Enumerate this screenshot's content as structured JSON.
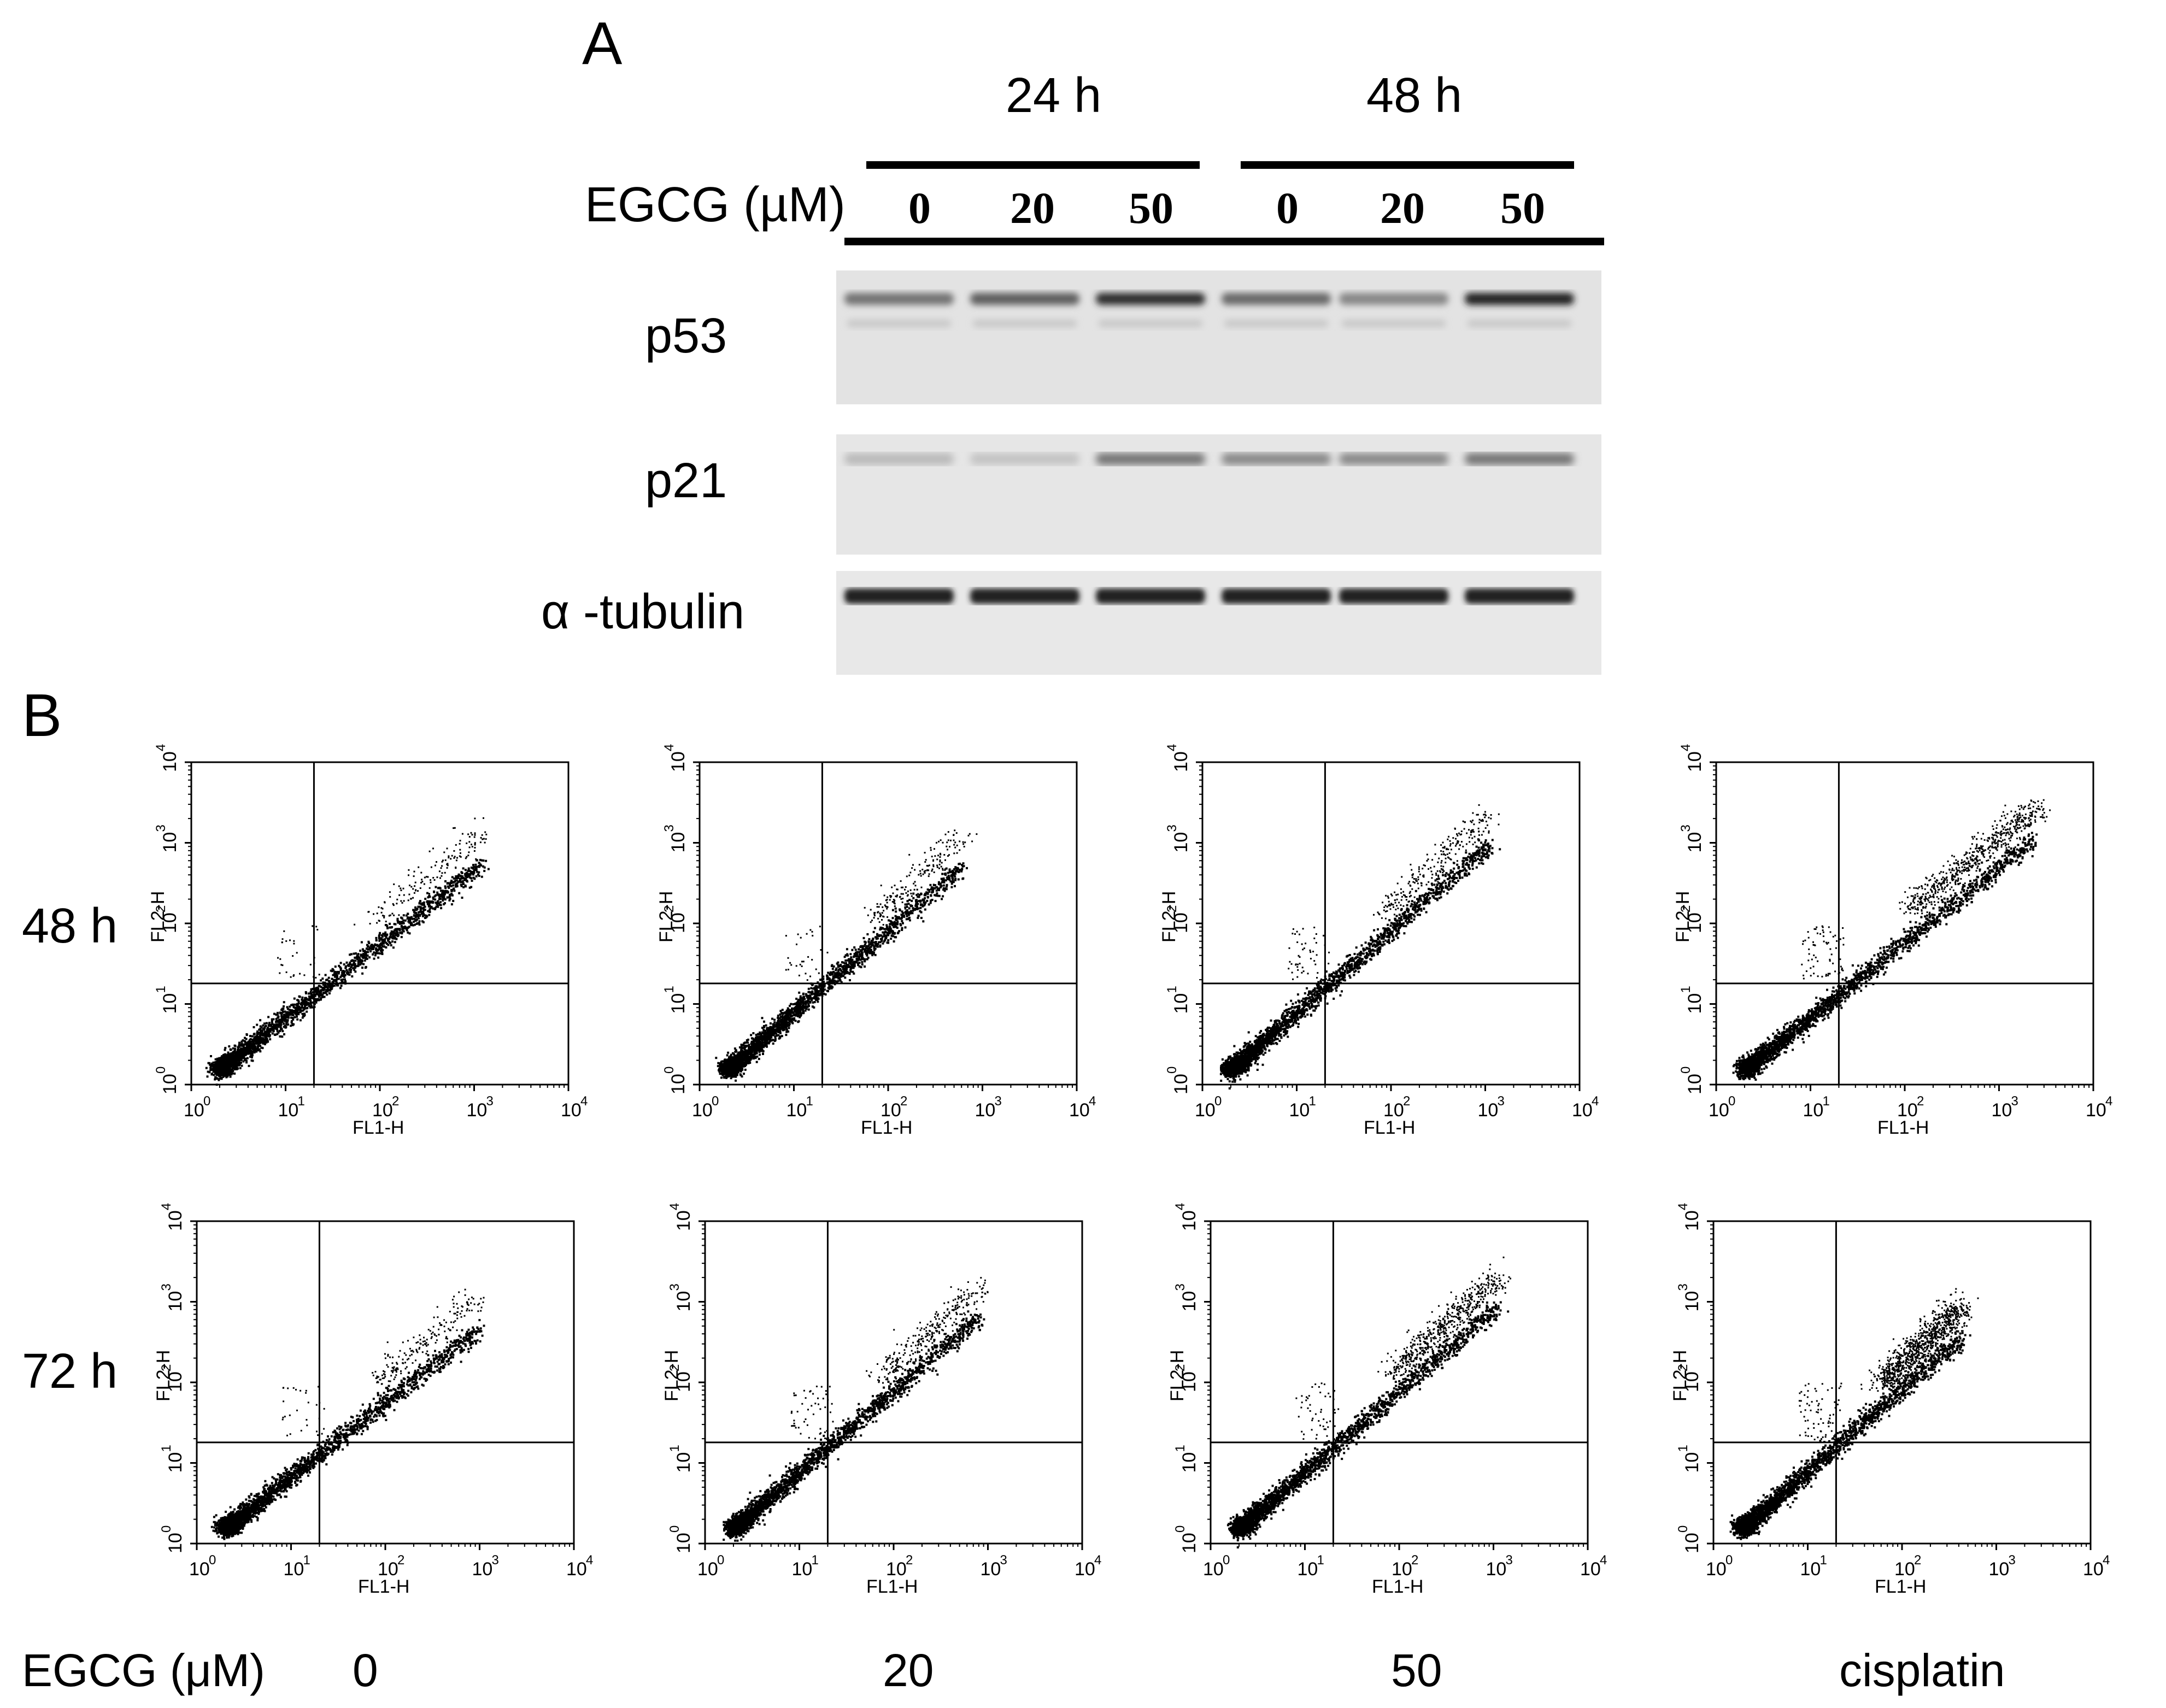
{
  "panel_a": {
    "letter": "A",
    "time_groups": [
      "24 h",
      "48 h"
    ],
    "treatment_label": "EGCG (µM)",
    "doses": [
      "0",
      "20",
      "50",
      "0",
      "20",
      "50"
    ],
    "blots": [
      {
        "label": "p53",
        "band_intensity": [
          0.55,
          0.65,
          0.9,
          0.6,
          0.45,
          0.95
        ]
      },
      {
        "label": "p21",
        "band_intensity": [
          0.2,
          0.15,
          0.55,
          0.45,
          0.45,
          0.55
        ]
      },
      {
        "label": "α -tubulin",
        "band_intensity": [
          0.95,
          0.95,
          0.95,
          0.95,
          0.95,
          0.95
        ]
      }
    ]
  },
  "panel_b": {
    "letter": "B",
    "row_labels": [
      "48 h",
      "72 h"
    ],
    "column_labels": [
      "0",
      "20",
      "50",
      "cisplatin"
    ],
    "treatment_label": "EGCG (μM)",
    "axis": {
      "xlabel": "FL1-H",
      "ylabel": "FL2-H",
      "ticks": [
        "10",
        "10",
        "10",
        "10",
        "10"
      ],
      "exponents": [
        "0",
        "1",
        "2",
        "3",
        "4"
      ]
    }
  },
  "chart_data": [
    {
      "type": "scatter",
      "row": "48 h",
      "column": "0",
      "xlabel": "FL1-H",
      "ylabel": "FL2-H",
      "xscale": "log",
      "yscale": "log",
      "xlim": [
        1,
        10000
      ],
      "ylim": [
        1,
        10000
      ],
      "quadrant_gate": {
        "x": 20,
        "y": 18
      },
      "main_population_end": {
        "x": 1200,
        "y": 650
      },
      "late_apoptotic_fraction": 0.05,
      "early_apoptotic_fraction": 0.01
    },
    {
      "type": "scatter",
      "row": "48 h",
      "column": "20",
      "xlabel": "FL1-H",
      "ylabel": "FL2-H",
      "xscale": "log",
      "yscale": "log",
      "xlim": [
        1,
        10000
      ],
      "ylim": [
        1,
        10000
      ],
      "quadrant_gate": {
        "x": 20,
        "y": 18
      },
      "main_population_end": {
        "x": 600,
        "y": 600
      },
      "late_apoptotic_fraction": 0.07,
      "early_apoptotic_fraction": 0.01
    },
    {
      "type": "scatter",
      "row": "48 h",
      "column": "50",
      "xlabel": "FL1-H",
      "ylabel": "FL2-H",
      "xscale": "log",
      "yscale": "log",
      "xlim": [
        1,
        10000
      ],
      "ylim": [
        1,
        10000
      ],
      "quadrant_gate": {
        "x": 20,
        "y": 18
      },
      "main_population_end": {
        "x": 1100,
        "y": 1100
      },
      "late_apoptotic_fraction": 0.1,
      "early_apoptotic_fraction": 0.02
    },
    {
      "type": "scatter",
      "row": "48 h",
      "column": "cisplatin",
      "xlabel": "FL1-H",
      "ylabel": "FL2-H",
      "xscale": "log",
      "yscale": "log",
      "xlim": [
        1,
        10000
      ],
      "ylim": [
        1,
        10000
      ],
      "quadrant_gate": {
        "x": 20,
        "y": 18
      },
      "main_population_end": {
        "x": 2400,
        "y": 1300
      },
      "late_apoptotic_fraction": 0.3,
      "early_apoptotic_fraction": 0.03
    },
    {
      "type": "scatter",
      "row": "72 h",
      "column": "0",
      "xlabel": "FL1-H",
      "ylabel": "FL2-H",
      "xscale": "log",
      "yscale": "log",
      "xlim": [
        1,
        10000
      ],
      "ylim": [
        1,
        10000
      ],
      "quadrant_gate": {
        "x": 20,
        "y": 18
      },
      "main_population_end": {
        "x": 1000,
        "y": 550
      },
      "late_apoptotic_fraction": 0.07,
      "early_apoptotic_fraction": 0.01
    },
    {
      "type": "scatter",
      "row": "72 h",
      "column": "20",
      "xlabel": "FL1-H",
      "ylabel": "FL2-H",
      "xscale": "log",
      "yscale": "log",
      "xlim": [
        1,
        10000
      ],
      "ylim": [
        1,
        10000
      ],
      "quadrant_gate": {
        "x": 20,
        "y": 18
      },
      "main_population_end": {
        "x": 800,
        "y": 750
      },
      "late_apoptotic_fraction": 0.12,
      "early_apoptotic_fraction": 0.02
    },
    {
      "type": "scatter",
      "row": "72 h",
      "column": "50",
      "xlabel": "FL1-H",
      "ylabel": "FL2-H",
      "xscale": "log",
      "yscale": "log",
      "xlim": [
        1,
        10000
      ],
      "ylim": [
        1,
        10000
      ],
      "quadrant_gate": {
        "x": 20,
        "y": 18
      },
      "main_population_end": {
        "x": 1100,
        "y": 1000
      },
      "late_apoptotic_fraction": 0.25,
      "early_apoptotic_fraction": 0.02
    },
    {
      "type": "scatter",
      "row": "72 h",
      "column": "cisplatin",
      "xlabel": "FL1-H",
      "ylabel": "FL2-H",
      "xscale": "log",
      "yscale": "log",
      "xlim": [
        1,
        10000
      ],
      "ylim": [
        1,
        10000
      ],
      "quadrant_gate": {
        "x": 20,
        "y": 18
      },
      "main_population_end": {
        "x": 420,
        "y": 420
      },
      "late_apoptotic_fraction": 0.45,
      "early_apoptotic_fraction": 0.03
    }
  ]
}
